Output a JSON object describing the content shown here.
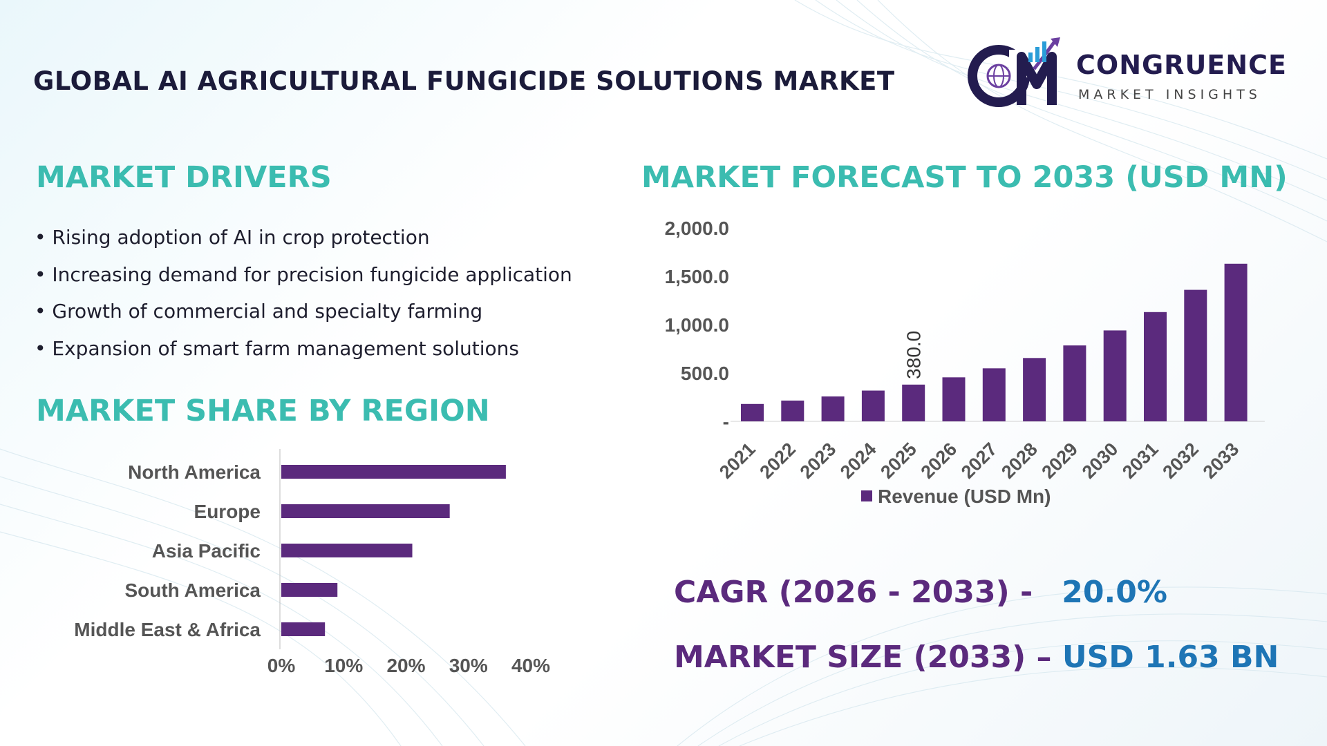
{
  "title": "GLOBAL AI AGRICULTURAL FUNGICIDE SOLUTIONS MARKET",
  "logo": {
    "mark": "CM",
    "name": "CONGRUENCE",
    "sub": "MARKET INSIGHTS"
  },
  "drivers": {
    "heading": "MARKET DRIVERS",
    "items": [
      "Rising adoption of AI in crop protection",
      "Increasing demand for precision fungicide application",
      "Growth of commercial and specialty farming",
      "Expansion of smart farm management solutions"
    ]
  },
  "region": {
    "heading": "MARKET SHARE BY REGION"
  },
  "forecast": {
    "heading": "MARKET FORECAST TO 2033 (USD MN)"
  },
  "stats": {
    "cagr_label": "CAGR (2026 - 2033) -",
    "cagr_value": "20.0%",
    "size_label": "MARKET SIZE (2033) –",
    "size_value": "USD 1.63 BN"
  },
  "colors": {
    "bar": "#5b2a7d",
    "heading": "#3bbcb0",
    "accent_blue": "#1e75b5",
    "title": "#1b1b3a"
  },
  "chart_data": [
    {
      "type": "bar",
      "orientation": "horizontal",
      "categories": [
        "North America",
        "Europe",
        "Asia Pacific",
        "South America",
        "Middle East & Africa"
      ],
      "values": [
        36,
        27,
        21,
        9,
        7
      ],
      "xlim": [
        0,
        40
      ],
      "xticks": [
        "0%",
        "10%",
        "20%",
        "30%",
        "40%"
      ],
      "grid": false
    },
    {
      "type": "bar",
      "categories": [
        "2021",
        "2022",
        "2023",
        "2024",
        "2025",
        "2026",
        "2027",
        "2028",
        "2029",
        "2030",
        "2031",
        "2032",
        "2033"
      ],
      "series": [
        {
          "name": "Revenue (USD Mn)",
          "values": [
            180,
            215,
            258,
            318,
            380,
            455,
            548,
            655,
            785,
            940,
            1130,
            1360,
            1630
          ]
        }
      ],
      "data_labels": [
        {
          "category": "2025",
          "text": "380.0"
        }
      ],
      "ylim": [
        0,
        2000
      ],
      "yticks": [
        "-",
        "500.0",
        "1,000.0",
        "1,500.0",
        "2,000.0"
      ],
      "legend": "bottom",
      "grid": false
    }
  ]
}
